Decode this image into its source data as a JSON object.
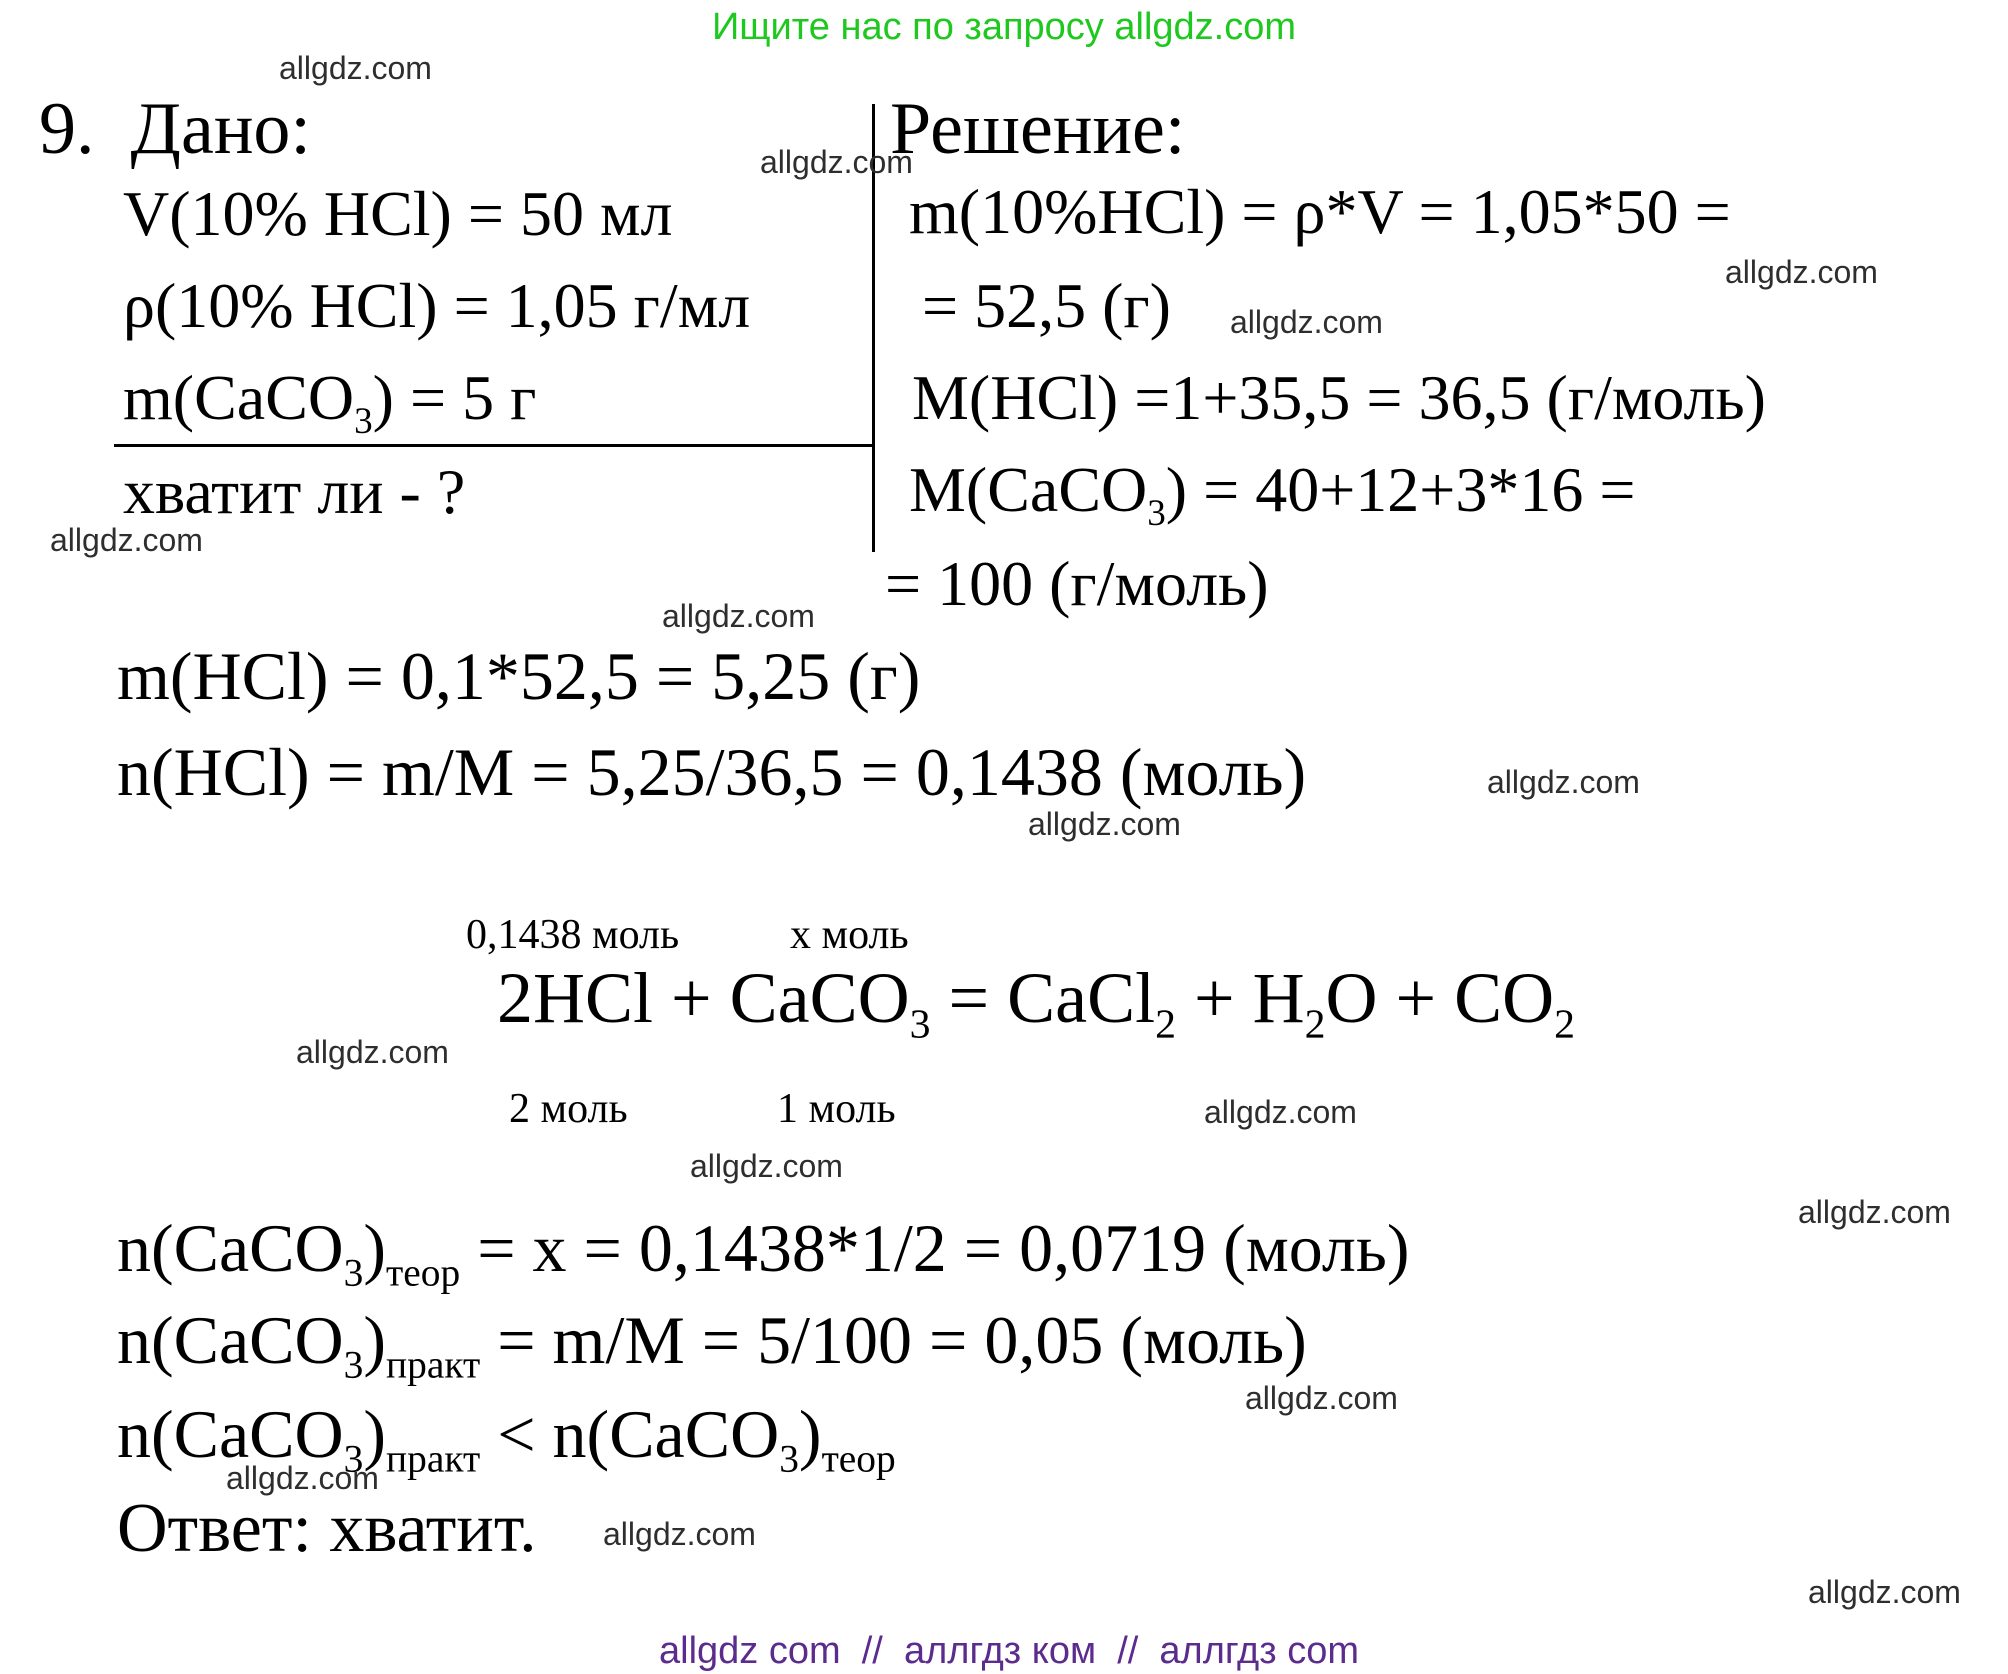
{
  "header": {
    "note": "Ищите нас по запросу allgdz.com",
    "note_color": "#1ec81e"
  },
  "problem": {
    "number_label": "9.",
    "given_title": "Дано:",
    "solution_title": "Решение:",
    "given": [
      "V(10% HCl) = 50 мл",
      "ρ(10% HCl) = 1,05 г/мл",
      "m(CaCO_3_) = 5 г",
      "хватит ли - ?"
    ],
    "solution": [
      "m(10%HCl) = ρ*V = 1,05*50 =",
      "= 52,5 (г)",
      "М(HCl) =1+35,5 = 36,5 (г/моль)",
      "М(CaCO_3_) = 40+12+3*16 =",
      "= 100 (г/моль)"
    ]
  },
  "work": [
    "m(HCl) = 0,1*52,5 = 5,25 (г)",
    "n(HCl) = m/M = 5,25/36,5 = 0,1438 (моль)"
  ],
  "reaction": {
    "above_left": "0,1438 моль",
    "above_right": "х моль",
    "equation": "2HCl + CaCO_3_ = CaCl_2_ + H_2_O + CO_2_",
    "below_left": "2 моль",
    "below_right": "1 моль"
  },
  "conclusion": [
    "n(CaCO_3_)_теор_ = х = 0,1438*1/2 = 0,0719 (моль)",
    "n(CaCO_3_)_практ_ = m/M = 5/100 = 0,05 (моль)",
    "n(CaCO_3_)_практ_ < n(CaCO_3_)_теор_"
  ],
  "answer": "Ответ: хватит.",
  "watermark": {
    "label": "allgdz.com"
  },
  "footer": {
    "text": "allgdz com  //  аллгдз ком  //  аллгдз com",
    "text_color": "#5b2b8d"
  }
}
